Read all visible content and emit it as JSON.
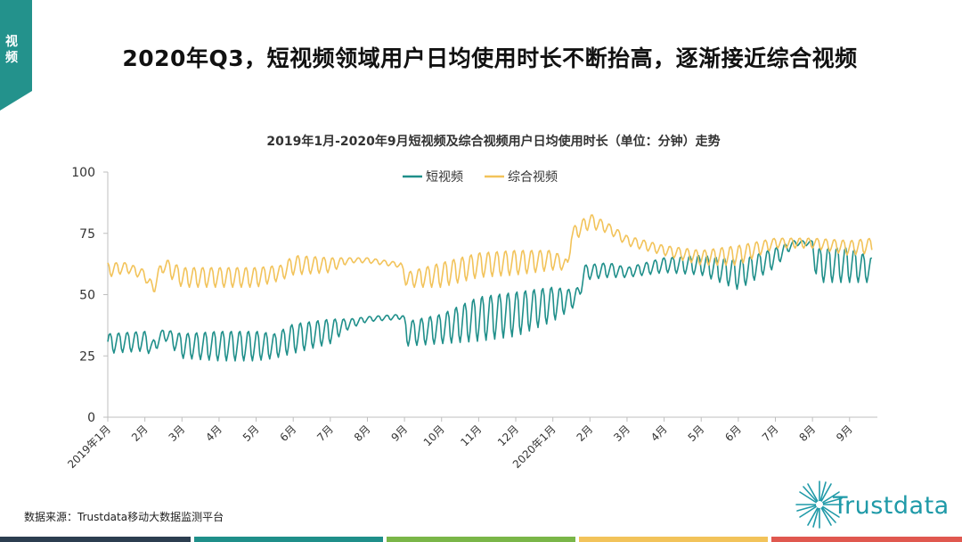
{
  "corner_label": "视频",
  "main_title": "2020年Q3，短视频领域用户日均使用时长不断抬高，逐渐接近综合视频",
  "source_note": "数据来源：Trustdata移动大数据监测平台",
  "logo_text": "Trustdata",
  "colors": {
    "short_video": "#1f8f8a",
    "general_video": "#f2c35a",
    "tag_bg": "#23928c",
    "axis": "#bfbfbf",
    "footer": [
      "#2c3e50",
      "#1f8f8a",
      "#7ab648",
      "#f2c35a",
      "#e0584f"
    ]
  },
  "chart_data": {
    "type": "line",
    "title": "2019年1月-2020年9月短视频及综合视频用户日均使用时长（单位：分钟）走势",
    "xlabel": "",
    "ylabel": "",
    "ylim": [
      0,
      100
    ],
    "yticks": [
      0,
      25,
      50,
      75,
      100
    ],
    "x_range": [
      0,
      20.75
    ],
    "x_ticks": [
      {
        "x": 0,
        "label": "2019年1月"
      },
      {
        "x": 1,
        "label": "2月"
      },
      {
        "x": 2,
        "label": "3月"
      },
      {
        "x": 3,
        "label": "4月"
      },
      {
        "x": 4,
        "label": "5月"
      },
      {
        "x": 5,
        "label": "6月"
      },
      {
        "x": 6,
        "label": "7月"
      },
      {
        "x": 7,
        "label": "8月"
      },
      {
        "x": 8,
        "label": "9月"
      },
      {
        "x": 9,
        "label": "10月"
      },
      {
        "x": 10,
        "label": "11月"
      },
      {
        "x": 11,
        "label": "12月"
      },
      {
        "x": 12,
        "label": "2020年1月"
      },
      {
        "x": 13,
        "label": "2月"
      },
      {
        "x": 14,
        "label": "3月"
      },
      {
        "x": 15,
        "label": "4月"
      },
      {
        "x": 16,
        "label": "5月"
      },
      {
        "x": 17,
        "label": "6月"
      },
      {
        "x": 18,
        "label": "7月"
      },
      {
        "x": 19,
        "label": "8月"
      },
      {
        "x": 20,
        "label": "9月"
      }
    ],
    "legend_position": "top-center",
    "series_note": "Daily values (weekly oscillation) rendered from the monthly anchors below",
    "series": [
      {
        "name": "短视频",
        "color": "#1f8f8a",
        "anchors": [
          {
            "x": 0,
            "base": 30,
            "amp": 4
          },
          {
            "x": 1,
            "base": 31,
            "amp": 4
          },
          {
            "x": 1.2,
            "base": 28,
            "amp": 3
          },
          {
            "x": 1.5,
            "base": 34,
            "amp": 2
          },
          {
            "x": 2,
            "base": 29,
            "amp": 5
          },
          {
            "x": 3,
            "base": 29,
            "amp": 6
          },
          {
            "x": 4,
            "base": 29,
            "amp": 6
          },
          {
            "x": 4.5,
            "base": 29,
            "amp": 5
          },
          {
            "x": 5,
            "base": 32,
            "amp": 6
          },
          {
            "x": 6,
            "base": 35,
            "amp": 5
          },
          {
            "x": 6.5,
            "base": 38,
            "amp": 2
          },
          {
            "x": 7,
            "base": 40,
            "amp": 1
          },
          {
            "x": 7.95,
            "base": 41,
            "amp": 1
          },
          {
            "x": 8.05,
            "base": 34,
            "amp": 5
          },
          {
            "x": 9,
            "base": 36,
            "amp": 6
          },
          {
            "x": 10,
            "base": 40,
            "amp": 9
          },
          {
            "x": 11,
            "base": 42,
            "amp": 9
          },
          {
            "x": 12,
            "base": 46,
            "amp": 7
          },
          {
            "x": 12.5,
            "base": 48,
            "amp": 4
          },
          {
            "x": 12.7,
            "base": 50,
            "amp": 3
          },
          {
            "x": 12.85,
            "base": 59,
            "amp": 3
          },
          {
            "x": 13.5,
            "base": 60,
            "amp": 3
          },
          {
            "x": 14,
            "base": 59,
            "amp": 2
          },
          {
            "x": 15,
            "base": 62,
            "amp": 3
          },
          {
            "x": 16,
            "base": 62,
            "amp": 4
          },
          {
            "x": 17,
            "base": 58,
            "amp": 6
          },
          {
            "x": 18,
            "base": 65,
            "amp": 4
          },
          {
            "x": 18.5,
            "base": 71,
            "amp": 1
          },
          {
            "x": 19,
            "base": 71,
            "amp": 1
          },
          {
            "x": 19.1,
            "base": 62,
            "amp": 7
          },
          {
            "x": 20,
            "base": 62,
            "amp": 7
          },
          {
            "x": 20.6,
            "base": 60,
            "amp": 5
          }
        ]
      },
      {
        "name": "综合视频",
        "color": "#f2c35a",
        "anchors": [
          {
            "x": 0,
            "base": 60,
            "amp": 3
          },
          {
            "x": 0.5,
            "base": 61,
            "amp": 2
          },
          {
            "x": 1,
            "base": 58,
            "amp": 2
          },
          {
            "x": 1.2,
            "base": 52,
            "amp": 3
          },
          {
            "x": 1.5,
            "base": 62,
            "amp": 3
          },
          {
            "x": 2,
            "base": 57,
            "amp": 4
          },
          {
            "x": 3,
            "base": 57,
            "amp": 4
          },
          {
            "x": 4,
            "base": 57,
            "amp": 4
          },
          {
            "x": 4.7,
            "base": 59,
            "amp": 3
          },
          {
            "x": 5,
            "base": 62,
            "amp": 4
          },
          {
            "x": 6,
            "base": 62,
            "amp": 3
          },
          {
            "x": 6.5,
            "base": 64,
            "amp": 1
          },
          {
            "x": 7,
            "base": 64,
            "amp": 1
          },
          {
            "x": 7.9,
            "base": 62,
            "amp": 1
          },
          {
            "x": 8.05,
            "base": 56,
            "amp": 3
          },
          {
            "x": 9,
            "base": 58,
            "amp": 5
          },
          {
            "x": 10,
            "base": 62,
            "amp": 5
          },
          {
            "x": 11,
            "base": 63,
            "amp": 5
          },
          {
            "x": 12,
            "base": 64,
            "amp": 4
          },
          {
            "x": 12.4,
            "base": 62,
            "amp": 2
          },
          {
            "x": 12.5,
            "base": 74,
            "amp": 3
          },
          {
            "x": 13,
            "base": 80,
            "amp": 3
          },
          {
            "x": 13.5,
            "base": 77,
            "amp": 2
          },
          {
            "x": 14,
            "base": 72,
            "amp": 2
          },
          {
            "x": 15,
            "base": 68,
            "amp": 2
          },
          {
            "x": 16,
            "base": 65,
            "amp": 3
          },
          {
            "x": 17,
            "base": 66,
            "amp": 4
          },
          {
            "x": 18,
            "base": 71,
            "amp": 2
          },
          {
            "x": 19,
            "base": 71,
            "amp": 2
          },
          {
            "x": 20,
            "base": 69,
            "amp": 3
          },
          {
            "x": 20.6,
            "base": 70,
            "amp": 3
          }
        ]
      }
    ]
  }
}
